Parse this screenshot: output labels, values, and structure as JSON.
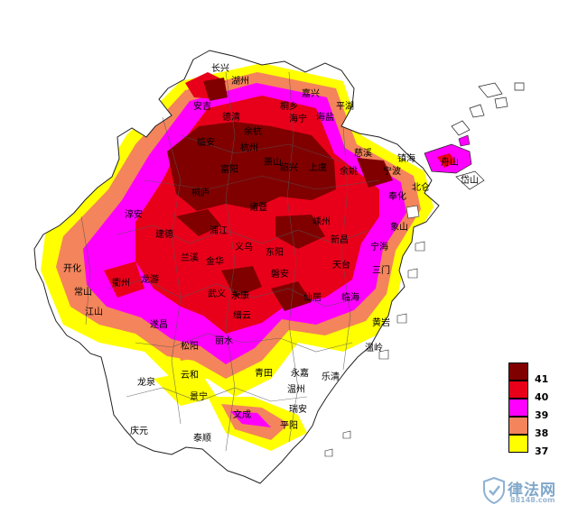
{
  "colors": {
    "t41": "#800000",
    "t40": "#e8001a",
    "t39": "#ff00ff",
    "t38": "#f4845b",
    "t37": "#ffff00",
    "boundary": "#333333",
    "background": "#ffffff"
  },
  "legend": {
    "items": [
      {
        "label": "41",
        "color": "#800000"
      },
      {
        "label": "40",
        "color": "#e8001a"
      },
      {
        "label": "39",
        "color": "#ff00ff"
      },
      {
        "label": "38",
        "color": "#f4845b"
      },
      {
        "label": "37",
        "color": "#ffff00"
      }
    ]
  },
  "cities": [
    {
      "id": "changxing",
      "name": "长兴"
    },
    {
      "id": "huzhou",
      "name": "湖州"
    },
    {
      "id": "deqing",
      "name": "德清"
    },
    {
      "id": "anji",
      "name": "安吉"
    },
    {
      "id": "jiaxing",
      "name": "嘉兴"
    },
    {
      "id": "tongxiang",
      "name": "桐乡"
    },
    {
      "id": "haiyan",
      "name": "海盐"
    },
    {
      "id": "haining",
      "name": "海宁"
    },
    {
      "id": "pinghu",
      "name": "平湖"
    },
    {
      "id": "linan",
      "name": "临安"
    },
    {
      "id": "yuhang",
      "name": "余杭"
    },
    {
      "id": "hangzhou",
      "name": "杭州"
    },
    {
      "id": "xiaoshan",
      "name": "萧山"
    },
    {
      "id": "shaoxing",
      "name": "绍兴"
    },
    {
      "id": "shangyu",
      "name": "上虞"
    },
    {
      "id": "yuyao",
      "name": "余姚"
    },
    {
      "id": "cixi",
      "name": "慈溪"
    },
    {
      "id": "ningbo",
      "name": "宁波"
    },
    {
      "id": "zhenhai",
      "name": "镇海"
    },
    {
      "id": "fenghua",
      "name": "奉化"
    },
    {
      "id": "beilun",
      "name": "北仑"
    },
    {
      "id": "chunan",
      "name": "淳安"
    },
    {
      "id": "jiande",
      "name": "建德"
    },
    {
      "id": "tonglu",
      "name": "桐庐"
    },
    {
      "id": "fuyang",
      "name": "富阳"
    },
    {
      "id": "zhuji",
      "name": "诸暨"
    },
    {
      "id": "pujiang",
      "name": "浦江"
    },
    {
      "id": "yiwu",
      "name": "义乌"
    },
    {
      "id": "dongyang",
      "name": "东阳"
    },
    {
      "id": "shengzhou",
      "name": "嵊州"
    },
    {
      "id": "xinchang",
      "name": "新昌"
    },
    {
      "id": "tiantai",
      "name": "天台"
    },
    {
      "id": "ninghai",
      "name": "宁海"
    },
    {
      "id": "xiangshan",
      "name": "象山"
    },
    {
      "id": "kaihua",
      "name": "开化"
    },
    {
      "id": "changshan",
      "name": "常山"
    },
    {
      "id": "jiangshan",
      "name": "江山"
    },
    {
      "id": "quzhou",
      "name": "衢州"
    },
    {
      "id": "longyou",
      "name": "龙游"
    },
    {
      "id": "lanxi",
      "name": "兰溪"
    },
    {
      "id": "jinhua",
      "name": "金华"
    },
    {
      "id": "wuyi",
      "name": "武义"
    },
    {
      "id": "yongkang",
      "name": "永康"
    },
    {
      "id": "pan_an",
      "name": "磐安"
    },
    {
      "id": "jinyun",
      "name": "缙云"
    },
    {
      "id": "xianju",
      "name": "仙居"
    },
    {
      "id": "linhai",
      "name": "临海"
    },
    {
      "id": "sanmen",
      "name": "三门"
    },
    {
      "id": "suichang",
      "name": "遂昌"
    },
    {
      "id": "songyang",
      "name": "松阳"
    },
    {
      "id": "lishui",
      "name": "丽水"
    },
    {
      "id": "longquan",
      "name": "龙泉"
    },
    {
      "id": "yunhe",
      "name": "云和"
    },
    {
      "id": "jingning",
      "name": "景宁"
    },
    {
      "id": "qingtian",
      "name": "青田"
    },
    {
      "id": "yongjia",
      "name": "永嘉"
    },
    {
      "id": "wenzhou",
      "name": "温州"
    },
    {
      "id": "yueqing",
      "name": "乐清"
    },
    {
      "id": "ruian",
      "name": "瑞安"
    },
    {
      "id": "pingyang",
      "name": "平阳"
    },
    {
      "id": "wencheng",
      "name": "文成"
    },
    {
      "id": "taishun",
      "name": "泰顺"
    },
    {
      "id": "qingyuan",
      "name": "庆元"
    },
    {
      "id": "wenling",
      "name": "温岭"
    },
    {
      "id": "huangyan",
      "name": "黄岩"
    },
    {
      "id": "zhoushan",
      "name": "舟山"
    },
    {
      "id": "daishan",
      "name": "岱山"
    }
  ],
  "watermark": {
    "brand": "律法网",
    "url": "88148.com"
  }
}
